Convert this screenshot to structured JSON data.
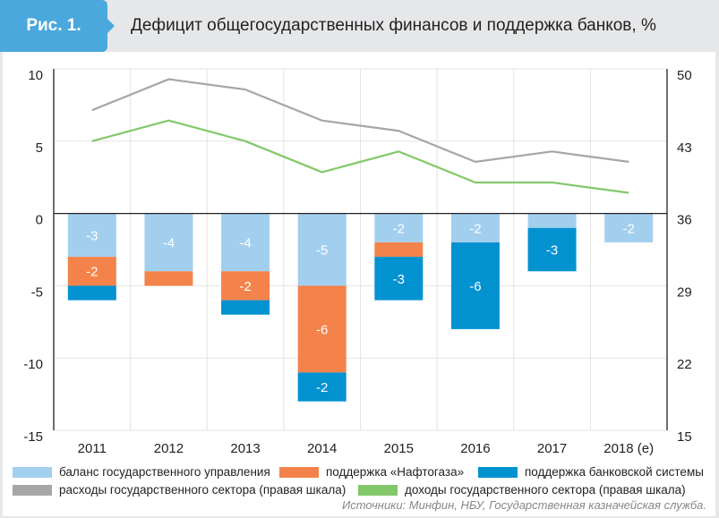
{
  "figure": {
    "tab_label": "Рис. 1.",
    "title": "Дефицит общегосударственных финансов и поддержка банков, %",
    "source": "Источники: Минфин, НБУ, Государственная казначейская служба.",
    "colors": {
      "header_bg": "#e6e7e9",
      "tab_bg": "#4ba8dd",
      "balance": "#a3cfee",
      "naftogaz": "#f3834a",
      "banks": "#0392d0",
      "expenditure": "#a6a6a6",
      "revenue": "#82c86a"
    }
  },
  "chart_data": {
    "type": "bar",
    "subtype": "stacked-bar-with-lines",
    "title": "Дефицит общегосударственных финансов и поддержка банков, %",
    "categories": [
      "2011",
      "2012",
      "2013",
      "2014",
      "2015",
      "2016",
      "2017",
      "2018 (e)"
    ],
    "left_axis": {
      "ylim": [
        -15,
        10
      ],
      "ticks": [
        "10",
        "5",
        "0",
        "-5",
        "-10",
        "-15"
      ],
      "tick_values": [
        10,
        5,
        0,
        -5,
        -10,
        -15
      ]
    },
    "right_axis": {
      "ylim": [
        15,
        50
      ],
      "ticks": [
        "50",
        "43",
        "36",
        "29",
        "22",
        "15"
      ],
      "tick_values": [
        50,
        43,
        36,
        29,
        22,
        15
      ]
    },
    "grid": true,
    "legend_position": "bottom",
    "series": [
      {
        "name": "баланс государственного управления",
        "type": "bar",
        "axis": "left",
        "color": "#a3cfee",
        "values": [
          -3,
          -4,
          -4,
          -5,
          -2,
          -2,
          -1,
          -2
        ],
        "labels": [
          "-3",
          "-4",
          "-4",
          "-5",
          "-2",
          "-2",
          "",
          "-2"
        ]
      },
      {
        "name": "поддержка «Нафтогаза»",
        "type": "bar",
        "axis": "left",
        "color": "#f3834a",
        "values": [
          -2,
          -1,
          -2,
          -6,
          -1,
          0,
          0,
          0
        ],
        "labels": [
          "-2",
          "",
          "-2",
          "-6",
          "",
          "",
          "",
          ""
        ]
      },
      {
        "name": "поддержка банковской системы",
        "type": "bar",
        "axis": "left",
        "color": "#0392d0",
        "values": [
          -1,
          0,
          -1,
          -2,
          -3,
          -6,
          -3,
          0
        ],
        "labels": [
          "",
          "",
          "",
          "-2",
          "-3",
          "-6",
          "-3",
          ""
        ]
      },
      {
        "name": "расходы государственного сектора (правая шкала)",
        "type": "line",
        "axis": "right",
        "color": "#a6a6a6",
        "values": [
          46,
          49,
          48,
          45,
          44,
          41,
          42,
          41
        ]
      },
      {
        "name": "доходы государственного сектора (правая шкала)",
        "type": "line",
        "axis": "right",
        "color": "#82c86a",
        "values": [
          43,
          45,
          43,
          40,
          42,
          39,
          39,
          38
        ]
      }
    ]
  },
  "legend": {
    "items": [
      {
        "label": "баланс государственного управления",
        "color": "#a3cfee"
      },
      {
        "label": "поддержка «Нафтогаза»",
        "color": "#f3834a"
      },
      {
        "label": "поддержка банковской системы",
        "color": "#0392d0"
      },
      {
        "label": "расходы государственного сектора (правая шкала)",
        "color": "#a6a6a6"
      },
      {
        "label": "доходы государственного сектора (правая шкала)",
        "color": "#82c86a"
      }
    ]
  }
}
